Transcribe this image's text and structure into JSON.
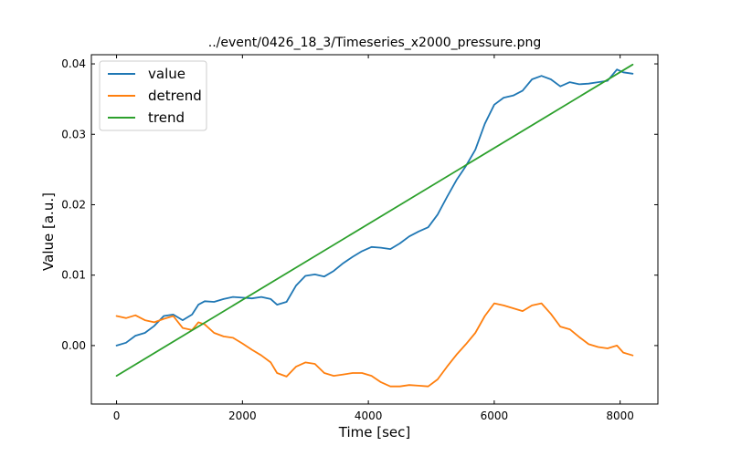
{
  "chart_data": {
    "type": "line",
    "title": "../event/0426_18_3/Timeseries_x2000_pressure.png",
    "xlabel": "Time [sec]",
    "ylabel": "Value [a.u.]",
    "xlim": [
      -400,
      8600
    ],
    "ylim": [
      -0.0083,
      0.0413
    ],
    "xticks": [
      0,
      2000,
      4000,
      6000,
      8000
    ],
    "xtick_labels": [
      "0",
      "2000",
      "4000",
      "6000",
      "8000"
    ],
    "yticks": [
      0.0,
      0.01,
      0.02,
      0.03,
      0.04
    ],
    "ytick_labels": [
      "0.00",
      "0.01",
      "0.02",
      "0.03",
      "0.04"
    ],
    "grid": false,
    "legend_position": "top-left",
    "series": [
      {
        "name": "value",
        "color": "#1f77b4",
        "x": [
          0,
          150,
          300,
          450,
          600,
          750,
          900,
          1050,
          1200,
          1300,
          1400,
          1550,
          1700,
          1850,
          2000,
          2150,
          2300,
          2450,
          2550,
          2700,
          2850,
          3000,
          3150,
          3300,
          3450,
          3600,
          3750,
          3900,
          4050,
          4200,
          4350,
          4500,
          4650,
          4800,
          4950,
          5100,
          5250,
          5400,
          5550,
          5700,
          5850,
          6000,
          6150,
          6300,
          6450,
          6600,
          6750,
          6900,
          7050,
          7200,
          7350,
          7500,
          7650,
          7800,
          7950,
          8050,
          8200
        ],
        "values": [
          0.0,
          0.0004,
          0.0014,
          0.0018,
          0.0028,
          0.0042,
          0.0044,
          0.0036,
          0.0044,
          0.0058,
          0.0063,
          0.0062,
          0.0066,
          0.0069,
          0.0068,
          0.0067,
          0.0069,
          0.0066,
          0.0058,
          0.0062,
          0.0085,
          0.0099,
          0.0101,
          0.0098,
          0.0106,
          0.0117,
          0.0126,
          0.0134,
          0.014,
          0.0139,
          0.0137,
          0.0145,
          0.0155,
          0.0162,
          0.0168,
          0.0186,
          0.0211,
          0.0235,
          0.0255,
          0.0278,
          0.0315,
          0.0342,
          0.0352,
          0.0355,
          0.0362,
          0.0378,
          0.0383,
          0.0378,
          0.0368,
          0.0374,
          0.0371,
          0.0372,
          0.0374,
          0.0376,
          0.0392,
          0.0388,
          0.0386
        ]
      },
      {
        "name": "detrend",
        "color": "#ff7f0e",
        "x": [
          0,
          150,
          300,
          450,
          600,
          750,
          900,
          1050,
          1200,
          1300,
          1400,
          1550,
          1700,
          1850,
          2000,
          2150,
          2300,
          2450,
          2550,
          2700,
          2850,
          3000,
          3150,
          3300,
          3450,
          3600,
          3750,
          3900,
          4050,
          4200,
          4350,
          4500,
          4650,
          4800,
          4950,
          5100,
          5250,
          5400,
          5550,
          5700,
          5850,
          6000,
          6150,
          6300,
          6450,
          6600,
          6750,
          6900,
          7050,
          7200,
          7350,
          7500,
          7650,
          7800,
          7950,
          8050,
          8200
        ],
        "values": [
          0.0042,
          0.0039,
          0.0043,
          0.0036,
          0.0033,
          0.0038,
          0.0042,
          0.0025,
          0.0022,
          0.0033,
          0.003,
          0.0018,
          0.0013,
          0.0011,
          0.0003,
          -0.0006,
          -0.0014,
          -0.0024,
          -0.0039,
          -0.0044,
          -0.003,
          -0.0024,
          -0.0026,
          -0.0039,
          -0.0043,
          -0.0041,
          -0.0039,
          -0.0039,
          -0.0043,
          -0.0052,
          -0.0058,
          -0.0058,
          -0.0056,
          -0.0057,
          -0.0058,
          -0.0048,
          -0.003,
          -0.0013,
          0.0002,
          0.0018,
          0.0042,
          0.006,
          0.0057,
          0.0053,
          0.0049,
          0.0057,
          0.006,
          0.0045,
          0.0027,
          0.0023,
          0.0012,
          0.0002,
          -0.0002,
          -0.0004,
          0.0,
          -0.001,
          -0.0014
        ]
      },
      {
        "name": "trend",
        "color": "#2ca02c",
        "x": [
          0,
          8200
        ],
        "values": [
          -0.0043,
          0.0399
        ]
      }
    ]
  }
}
